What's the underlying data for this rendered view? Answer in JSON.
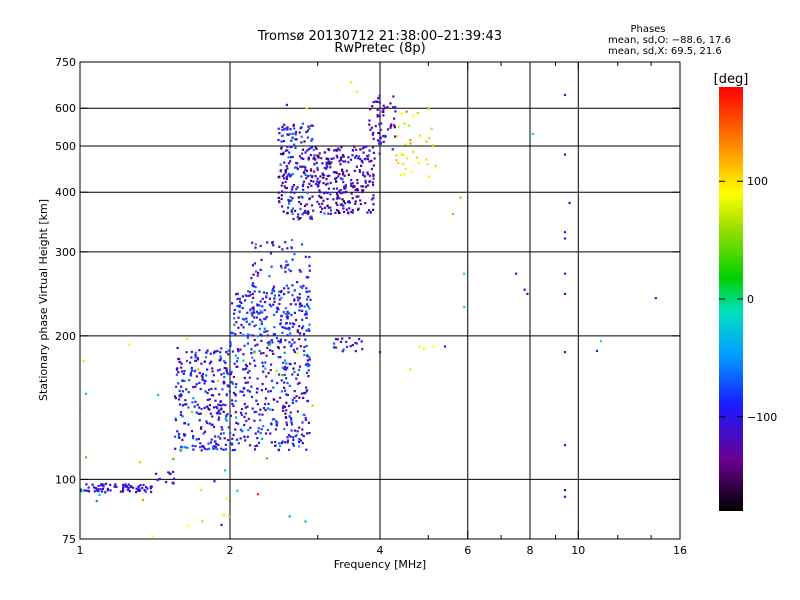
{
  "title": "Tromsø 20130712 21:38:00–21:39:43",
  "subtitle": "RwPretec (8p)",
  "stats": {
    "heading": "Phases",
    "line_o": "mean, sd,O: −88.6, 17.6",
    "line_x": "mean, sd,X:  69.5, 21.6"
  },
  "colorbar": {
    "unit": "[deg]",
    "ticks": [
      {
        "value": 100,
        "label": "100"
      },
      {
        "value": 0,
        "label": "0"
      },
      {
        "value": -100,
        "label": "−100"
      }
    ],
    "range": [
      -180,
      180
    ]
  },
  "chart_data": {
    "type": "scatter",
    "xlabel": "Frequency [MHz]",
    "ylabel": "Stationary phase Virtual Height [km]",
    "xscale": "log",
    "yscale": "log",
    "xlim": [
      1,
      16
    ],
    "ylim": [
      75,
      750
    ],
    "xticks": [
      {
        "value": 1,
        "label": "1"
      },
      {
        "value": 2,
        "label": "2"
      },
      {
        "value": 4,
        "label": "4"
      },
      {
        "value": 6,
        "label": "6"
      },
      {
        "value": 8,
        "label": "8"
      },
      {
        "value": 10,
        "label": "10"
      },
      {
        "value": 16,
        "label": "16"
      }
    ],
    "x_gridlines": [
      2,
      4,
      6,
      8,
      10
    ],
    "x_minor_ticks": [
      3,
      5,
      7,
      9,
      12,
      14
    ],
    "yticks": [
      {
        "value": 75,
        "label": "75"
      },
      {
        "value": 100,
        "label": "100"
      },
      {
        "value": 200,
        "label": "200"
      },
      {
        "value": 300,
        "label": "300"
      },
      {
        "value": 400,
        "label": "400"
      },
      {
        "value": 500,
        "label": "500"
      },
      {
        "value": 600,
        "label": "600"
      },
      {
        "value": 750,
        "label": "750"
      }
    ],
    "y_gridlines": [
      100,
      200,
      300,
      400,
      500,
      600
    ],
    "grid": true,
    "colorscale": "rainbow",
    "color_variable": "phase [deg]",
    "clusters": [
      {
        "f_min": 1.0,
        "f_max": 1.4,
        "h_min": 94,
        "h_max": 98,
        "phase_mean": -110,
        "phase_sd": 6,
        "count": 70
      },
      {
        "f_min": 1.4,
        "f_max": 1.55,
        "h_min": 97,
        "h_max": 104,
        "phase_mean": -110,
        "phase_sd": 6,
        "count": 12
      },
      {
        "f_min": 1.55,
        "f_max": 2.0,
        "h_min": 115,
        "h_max": 190,
        "phase_mean": -105,
        "phase_sd": 20,
        "count": 260
      },
      {
        "f_min": 2.0,
        "f_max": 2.9,
        "h_min": 115,
        "h_max": 250,
        "phase_mean": -105,
        "phase_sd": 22,
        "count": 480
      },
      {
        "f_min": 2.2,
        "f_max": 2.9,
        "h_min": 200,
        "h_max": 320,
        "phase_mean": -100,
        "phase_sd": 22,
        "count": 120
      },
      {
        "f_min": 2.5,
        "f_max": 2.95,
        "h_min": 350,
        "h_max": 560,
        "phase_mean": -110,
        "phase_sd": 25,
        "count": 200
      },
      {
        "f_min": 2.95,
        "f_max": 3.9,
        "h_min": 360,
        "h_max": 500,
        "phase_mean": -125,
        "phase_sd": 20,
        "count": 260
      },
      {
        "f_min": 3.8,
        "f_max": 4.3,
        "h_min": 480,
        "h_max": 640,
        "phase_mean": -120,
        "phase_sd": 15,
        "count": 60
      },
      {
        "f_min": 4.3,
        "f_max": 5.2,
        "h_min": 430,
        "h_max": 600,
        "phase_mean": 90,
        "phase_sd": 25,
        "count": 35
      },
      {
        "f_min": 3.2,
        "f_max": 3.7,
        "h_min": 185,
        "h_max": 200,
        "phase_mean": -110,
        "phase_sd": 15,
        "count": 20
      },
      {
        "f_min": 1.0,
        "f_max": 3.0,
        "h_min": 80,
        "h_max": 200,
        "phase_mean": 40,
        "phase_sd": 80,
        "count": 35
      }
    ],
    "points": [
      {
        "f": 4.8,
        "h": 190,
        "phase": 90
      },
      {
        "f": 4.9,
        "h": 188,
        "phase": 95
      },
      {
        "f": 5.1,
        "h": 190,
        "phase": 100
      },
      {
        "f": 5.4,
        "h": 190,
        "phase": -110
      },
      {
        "f": 4.0,
        "h": 185,
        "phase": -110
      },
      {
        "f": 4.6,
        "h": 170,
        "phase": 110
      },
      {
        "f": 5.6,
        "h": 360,
        "phase": 130
      },
      {
        "f": 5.8,
        "h": 390,
        "phase": 130
      },
      {
        "f": 5.9,
        "h": 270,
        "phase": -20
      },
      {
        "f": 5.9,
        "h": 230,
        "phase": -20
      },
      {
        "f": 7.5,
        "h": 270,
        "phase": -110
      },
      {
        "f": 7.8,
        "h": 250,
        "phase": -110
      },
      {
        "f": 7.9,
        "h": 245,
        "phase": -110
      },
      {
        "f": 8.1,
        "h": 530,
        "phase": -20
      },
      {
        "f": 9.4,
        "h": 640,
        "phase": -110
      },
      {
        "f": 9.4,
        "h": 480,
        "phase": -110
      },
      {
        "f": 9.4,
        "h": 330,
        "phase": -110
      },
      {
        "f": 9.4,
        "h": 320,
        "phase": -110
      },
      {
        "f": 9.4,
        "h": 270,
        "phase": -110
      },
      {
        "f": 9.4,
        "h": 245,
        "phase": -110
      },
      {
        "f": 9.4,
        "h": 185,
        "phase": -110
      },
      {
        "f": 9.4,
        "h": 118,
        "phase": -110
      },
      {
        "f": 9.4,
        "h": 95,
        "phase": -110
      },
      {
        "f": 9.4,
        "h": 92,
        "phase": -110
      },
      {
        "f": 9.6,
        "h": 380,
        "phase": -110
      },
      {
        "f": 10.9,
        "h": 186,
        "phase": -110
      },
      {
        "f": 11.1,
        "h": 195,
        "phase": -20
      },
      {
        "f": 14.3,
        "h": 240,
        "phase": -110
      },
      {
        "f": 1.65,
        "h": 80,
        "phase": 100
      },
      {
        "f": 1.75,
        "h": 95,
        "phase": 110
      },
      {
        "f": 1.4,
        "h": 76,
        "phase": 100
      },
      {
        "f": 1.0,
        "h": 140,
        "phase": 100
      },
      {
        "f": 3.5,
        "h": 680,
        "phase": 110
      },
      {
        "f": 3.6,
        "h": 650,
        "phase": 110
      },
      {
        "f": 2.6,
        "h": 610,
        "phase": -110
      },
      {
        "f": 2.85,
        "h": 600,
        "phase": 100
      }
    ]
  }
}
